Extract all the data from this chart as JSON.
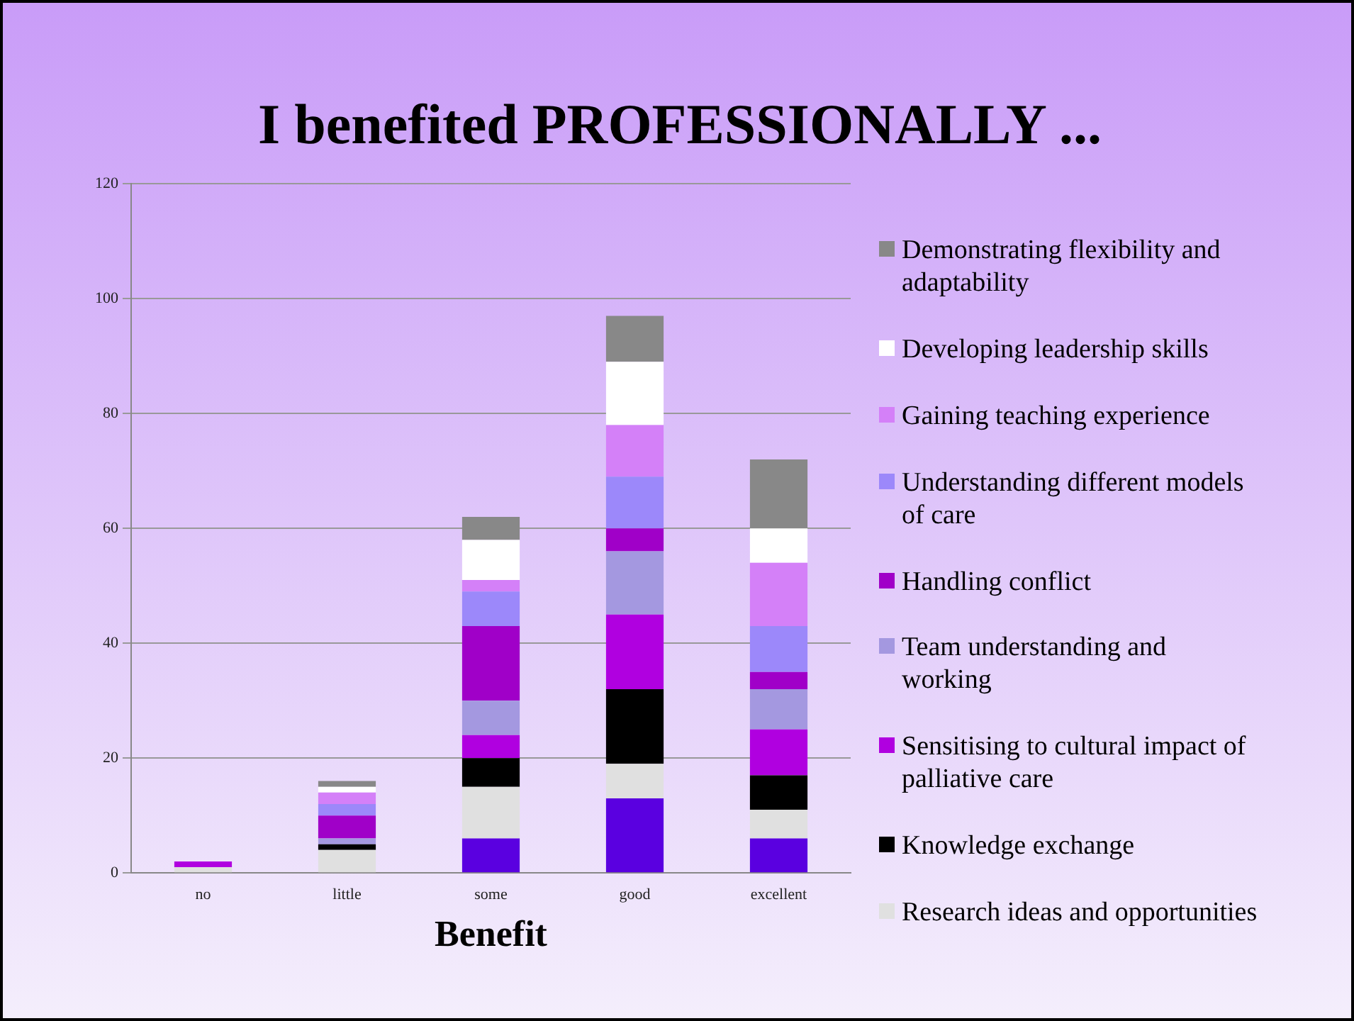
{
  "chart_data": {
    "type": "bar",
    "title": "I benefited PROFESSIONALLY ...",
    "xlabel": "Benefit",
    "categories": [
      "no",
      "little",
      "some",
      "good",
      "excellent"
    ],
    "stacked": true,
    "legend": "right",
    "grid": "y",
    "ylim": [
      0,
      120
    ],
    "yticks": [
      0,
      20,
      40,
      60,
      80,
      100,
      120
    ],
    "series": [
      {
        "color": "#5a00e0",
        "values": [
          0,
          0,
          6,
          13,
          6
        ]
      },
      {
        "name": "Research ideas and opportunities",
        "color": "#e0e0e0",
        "values": [
          1,
          4,
          9,
          6,
          5
        ]
      },
      {
        "name": "Knowledge exchange",
        "color": "#000000",
        "values": [
          0,
          1,
          5,
          13,
          6
        ]
      },
      {
        "name": "Sensitising to cultural impact of palliative care",
        "color": "#b000e0",
        "values": [
          1,
          0,
          4,
          13,
          8
        ]
      },
      {
        "name": "Team understanding and working",
        "color": "#a498e0",
        "values": [
          0,
          1,
          6,
          11,
          7
        ]
      },
      {
        "name": "Handling conflict",
        "color": "#a000c8",
        "values": [
          0,
          4,
          13,
          4,
          3
        ]
      },
      {
        "name": "Understanding different models of care",
        "color": "#9c88fa",
        "values": [
          0,
          2,
          6,
          9,
          8
        ]
      },
      {
        "name": "Gaining teaching experience",
        "color": "#d480f8",
        "values": [
          0,
          2,
          2,
          9,
          11
        ]
      },
      {
        "name": "Developing leadership skills",
        "color": "#ffffff",
        "values": [
          0,
          1,
          7,
          11,
          6
        ]
      },
      {
        "name": "Demonstrating flexibility and adaptability",
        "color": "#888888",
        "values": [
          0,
          1,
          4,
          8,
          12
        ]
      }
    ]
  }
}
